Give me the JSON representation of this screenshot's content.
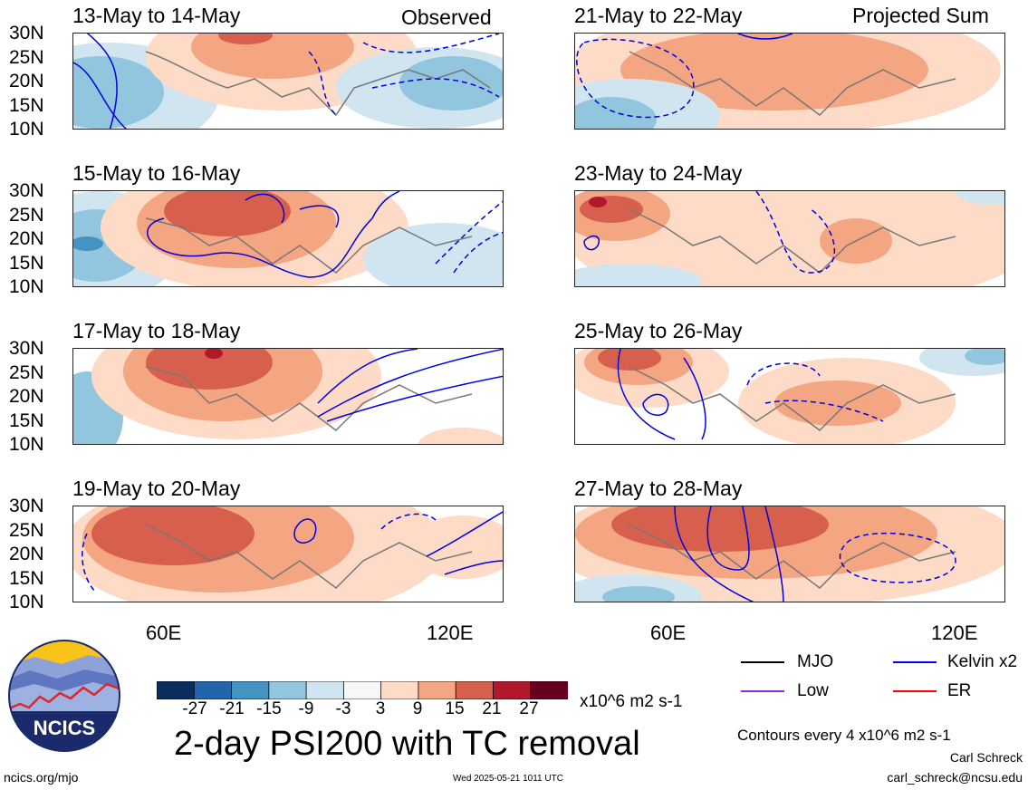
{
  "panels": [
    {
      "title": "13-May to 14-May",
      "tag": "Observed"
    },
    {
      "title": "15-May to 16-May",
      "tag": ""
    },
    {
      "title": "17-May to 18-May",
      "tag": ""
    },
    {
      "title": "19-May to 20-May",
      "tag": ""
    },
    {
      "title": "21-May to 22-May",
      "tag": "Projected Sum"
    },
    {
      "title": "23-May to 24-May",
      "tag": ""
    },
    {
      "title": "25-May to 26-May",
      "tag": ""
    },
    {
      "title": "27-May to 28-May",
      "tag": ""
    }
  ],
  "lat_labels": [
    "30N",
    "25N",
    "20N",
    "15N",
    "10N"
  ],
  "lon_labels": [
    "60E",
    "120E"
  ],
  "colorbar": {
    "labels": [
      "-27",
      "-21",
      "-15",
      "-9",
      "-3",
      "3",
      "9",
      "15",
      "21",
      "27"
    ],
    "colors": [
      "#0a2d5e",
      "#2166ac",
      "#4393c3",
      "#92c5de",
      "#d1e5f0",
      "#f7f7f7",
      "#fddbc7",
      "#f4a582",
      "#d6604d",
      "#b2182b",
      "#67001f"
    ],
    "unit": "x10^6 m2 s-1"
  },
  "legend": [
    {
      "label": "MJO",
      "color": "#000000"
    },
    {
      "label": "Kelvin x2",
      "color": "#0000ff"
    },
    {
      "label": "Low",
      "color": "#8a2be2"
    },
    {
      "label": "ER",
      "color": "#ff0000"
    }
  ],
  "logo_text": "NCICS",
  "main_title": "2-day PSI200 with TC removal",
  "contour_note": "Contours every 4 x10^6 m2 s-1",
  "author": "Carl Schreck",
  "email": "carl_schreck@ncsu.edu",
  "site": "ncics.org/mjo",
  "timestamp": "Wed 2025-05-21 1011 UTC"
}
